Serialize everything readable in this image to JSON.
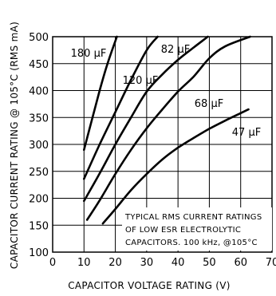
{
  "chart_data": {
    "type": "line",
    "xlabel": "CAPACITOR VOLTAGE RATING (V)",
    "ylabel": "CAPACITOR CURRENT RATING @ 105°C (RMS mA)",
    "xlim": [
      0,
      70
    ],
    "ylim": [
      100,
      500
    ],
    "x_ticks": [
      "0",
      "10",
      "20",
      "30",
      "40",
      "50",
      "60",
      "70"
    ],
    "y_ticks": [
      "100",
      "150",
      "200",
      "250",
      "300",
      "350",
      "400",
      "450",
      "500"
    ],
    "grid": true,
    "series": [
      {
        "name": "180 µF",
        "points": [
          [
            10,
            290
          ],
          [
            12.5,
            345
          ],
          [
            15,
            400
          ],
          [
            17.5,
            450
          ],
          [
            20.5,
            500
          ]
        ]
      },
      {
        "name": "120 µF",
        "points": [
          [
            10,
            236
          ],
          [
            15,
            300
          ],
          [
            20,
            360
          ],
          [
            25,
            420
          ],
          [
            30,
            475
          ],
          [
            33.5,
            500
          ]
        ]
      },
      {
        "name": "82 µF",
        "points": [
          [
            10,
            195
          ],
          [
            15,
            246
          ],
          [
            20,
            300
          ],
          [
            25,
            350
          ],
          [
            30,
            398
          ],
          [
            35,
            430
          ],
          [
            40,
            457
          ],
          [
            45,
            480
          ],
          [
            49.5,
            500
          ]
        ]
      },
      {
        "name": "68 µF",
        "points": [
          [
            11,
            160
          ],
          [
            15,
            196
          ],
          [
            20,
            245
          ],
          [
            25,
            290
          ],
          [
            30,
            330
          ],
          [
            35,
            365
          ],
          [
            40,
            398
          ],
          [
            45,
            426
          ],
          [
            50,
            460
          ],
          [
            55,
            482
          ],
          [
            63,
            500
          ]
        ]
      },
      {
        "name": "47 µF",
        "points": [
          [
            16,
            153
          ],
          [
            20,
            180
          ],
          [
            25,
            215
          ],
          [
            30,
            245
          ],
          [
            35,
            272
          ],
          [
            40,
            294
          ],
          [
            45,
            312
          ],
          [
            50,
            329
          ],
          [
            55,
            344
          ],
          [
            60,
            358
          ],
          [
            62.5,
            365
          ]
        ]
      }
    ],
    "annotation": [
      "TYPICAL RMS CURRENT RATINGS",
      "OF LOW ESR ELECTROLYTIC",
      "CAPACITORS. 100 kHz, @105°C"
    ]
  }
}
